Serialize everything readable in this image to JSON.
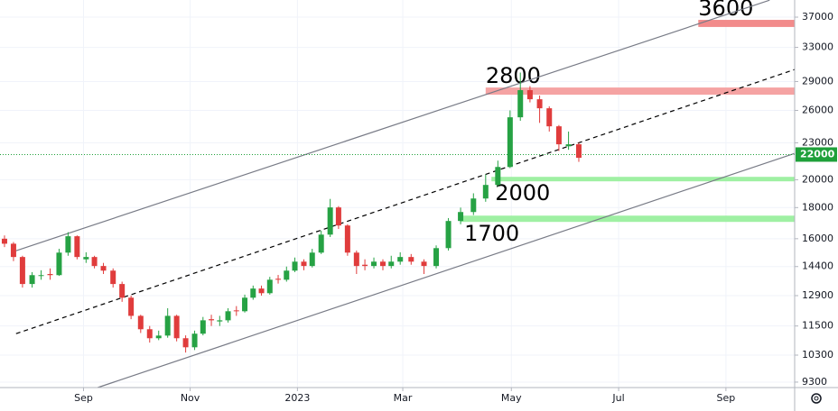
{
  "chart_data": {
    "type": "candlestick",
    "log_scale": true,
    "grid": true,
    "up_color": "#26a244",
    "down_color": "#e03c3c",
    "xlim": [
      2022.537,
      2023.774
    ],
    "ylim": [
      9110,
      39480
    ],
    "xticks": [
      {
        "value": 2022.667,
        "label": "Sep"
      },
      {
        "value": 2022.833,
        "label": "Nov"
      },
      {
        "value": 2023.0,
        "label": "2023"
      },
      {
        "value": 2023.164,
        "label": "Mar"
      },
      {
        "value": 2023.333,
        "label": "May"
      },
      {
        "value": 2023.5,
        "label": "Jul"
      },
      {
        "value": 2023.667,
        "label": "Sep"
      }
    ],
    "yticks": [
      9300,
      10300,
      11500,
      12900,
      14400,
      16000,
      18000,
      20000,
      23000,
      26000,
      29000,
      33000,
      37000
    ],
    "x": [
      2022.544,
      2022.558,
      2022.572,
      2022.587,
      2022.601,
      2022.615,
      2022.629,
      2022.643,
      2022.657,
      2022.671,
      2022.684,
      2022.698,
      2022.713,
      2022.727,
      2022.741,
      2022.756,
      2022.77,
      2022.784,
      2022.798,
      2022.812,
      2022.826,
      2022.84,
      2022.853,
      2022.866,
      2022.879,
      2022.892,
      2022.905,
      2022.918,
      2022.931,
      2022.944,
      2022.957,
      2022.97,
      2022.983,
      2022.996,
      2023.01,
      2023.023,
      2023.037,
      2023.051,
      2023.064,
      2023.078,
      2023.092,
      2023.105,
      2023.119,
      2023.133,
      2023.146,
      2023.16,
      2023.177,
      2023.197,
      2023.216,
      2023.235,
      2023.254,
      2023.274,
      2023.293,
      2023.312,
      2023.331,
      2023.347,
      2023.362,
      2023.377,
      2023.392,
      2023.407,
      2023.422,
      2023.438
    ],
    "open": [
      16000,
      15700,
      14930,
      13480,
      13900,
      14000,
      13940,
      15180,
      16150,
      14800,
      14930,
      14430,
      14180,
      13480,
      12800,
      11950,
      11360,
      10980,
      11090,
      11950,
      10980,
      10610,
      11170,
      11800,
      11700,
      11750,
      12200,
      12160,
      12800,
      13250,
      13020,
      13750,
      13700,
      14180,
      14670,
      14430,
      15180,
      16250,
      18010,
      16820,
      15180,
      14500,
      14430,
      14670,
      14430,
      14670,
      14930,
      14670,
      14430,
      15440,
      17110,
      17700,
      18630,
      19610,
      20990,
      25330,
      28070,
      27120,
      26210,
      24480,
      22700,
      22870
    ],
    "high": [
      16200,
      15800,
      15000,
      14100,
      14200,
      14300,
      15400,
      16400,
      16200,
      15200,
      15000,
      14600,
      14300,
      13600,
      12900,
      12000,
      11500,
      11300,
      12300,
      12000,
      11100,
      11300,
      11900,
      12000,
      11950,
      12300,
      12400,
      12950,
      13400,
      13400,
      13850,
      13950,
      14400,
      14900,
      14800,
      15400,
      16500,
      18600,
      18100,
      16900,
      15300,
      14800,
      14900,
      14800,
      15000,
      15200,
      15100,
      14800,
      15600,
      17300,
      18000,
      19000,
      20400,
      21500,
      26000,
      30000,
      28500,
      27500,
      26400,
      24600,
      24000,
      23000
    ],
    "low": [
      15500,
      14700,
      13300,
      13300,
      13700,
      13700,
      13900,
      15000,
      14800,
      14600,
      14300,
      14000,
      13300,
      12600,
      11800,
      11200,
      10800,
      10900,
      11000,
      10850,
      10400,
      10500,
      11100,
      11500,
      11500,
      11650,
      11950,
      12100,
      12700,
      12900,
      12950,
      13500,
      13600,
      14100,
      14200,
      14350,
      15100,
      16100,
      16600,
      15000,
      14000,
      14200,
      14300,
      14200,
      14300,
      14500,
      14500,
      14000,
      14300,
      15300,
      16900,
      17500,
      18400,
      19500,
      20900,
      25000,
      26800,
      24800,
      24000,
      22300,
      22400,
      21400
    ],
    "close": [
      15700,
      14930,
      13480,
      13940,
      13940,
      13940,
      15180,
      16150,
      14930,
      14930,
      14430,
      14180,
      13480,
      12800,
      11950,
      11360,
      10980,
      11090,
      11950,
      10980,
      10610,
      11170,
      11750,
      11750,
      11750,
      12160,
      12160,
      12800,
      13250,
      13020,
      13700,
      13700,
      14180,
      14670,
      14430,
      15180,
      16250,
      18010,
      16820,
      15180,
      14430,
      14430,
      14670,
      14430,
      14670,
      14930,
      14670,
      14430,
      15440,
      17110,
      17700,
      18630,
      19610,
      20990,
      25330,
      28070,
      27120,
      26210,
      24480,
      22870,
      22870,
      21730
    ],
    "last_price": 22000,
    "last_price_color": "#1fa03a",
    "channel_lines": [
      {
        "x": [
          2022.562,
          2023.735
        ],
        "y": [
          15290,
          39450
        ],
        "style": "solid",
        "color": "#787b86"
      },
      {
        "x": [
          2022.562,
          2023.774
        ],
        "y": [
          11170,
          30350
        ],
        "style": "dashed",
        "color": "#000000"
      },
      {
        "x": [
          2022.689,
          2023.774
        ],
        "y": [
          9110,
          22100
        ],
        "style": "solid",
        "color": "#787b86"
      }
    ],
    "zones": [
      {
        "label": "3600",
        "x_start": 2023.624,
        "y": [
          35650,
          36620
        ],
        "color": "#f28b8b"
      },
      {
        "label": "2800",
        "x_start": 2023.293,
        "y": [
          27590,
          28350
        ],
        "color": "#f5a3a3"
      },
      {
        "label": "2000",
        "x_start": 2023.302,
        "y": [
          19880,
          20220
        ],
        "color": "#9ff0a3"
      },
      {
        "label": "1700",
        "x_start": 2023.254,
        "y": [
          17050,
          17460
        ],
        "color": "#9ff0a3"
      }
    ]
  }
}
